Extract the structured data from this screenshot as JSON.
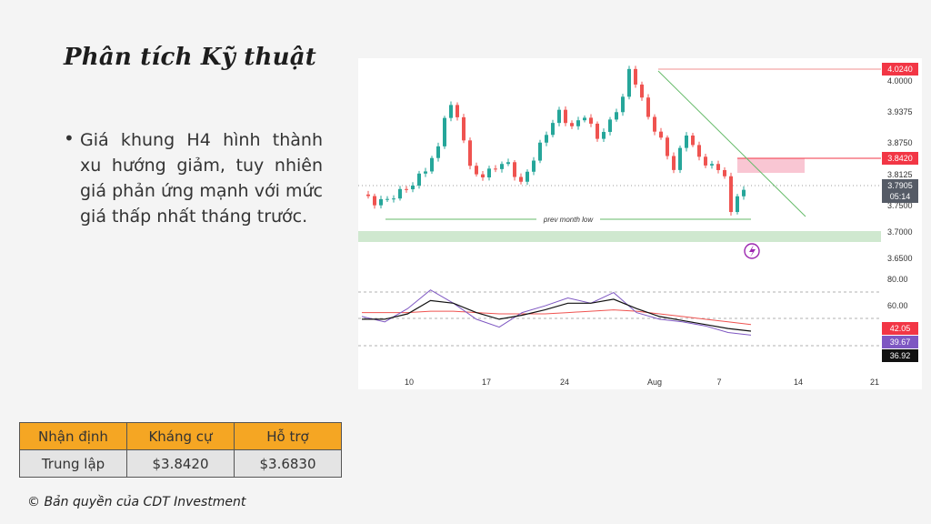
{
  "slide": {
    "title": "Phân tích Kỹ thuật"
  },
  "bullet": {
    "text": "Giá khung H4 hình thành xu hướng giảm, tuy nhiên giá phản ứng mạnh với mức giá thấp nhất tháng trước."
  },
  "chart": {
    "annotation": "prev month low",
    "price_axis": [
      "4.0000",
      "3.9375",
      "3.8750",
      "3.8125",
      "3.7500",
      "3.7000",
      "3.6500"
    ],
    "price_badges": {
      "high": "4.0240",
      "resistance": "3.8420",
      "current": "3.7905",
      "countdown": "05:14"
    },
    "rsi_axis": [
      "80.00",
      "60.00"
    ],
    "rsi_badges": {
      "a": "42.05",
      "b": "39.67",
      "c": "36.92"
    },
    "x_axis": [
      "10",
      "17",
      "24",
      "Aug",
      "7",
      "14",
      "21"
    ],
    "colors": {
      "up": "#26a69a",
      "down": "#ef5350",
      "resistance": "#f23645",
      "support_zone": "#cfe8cf",
      "trendline": "#66bb6a"
    }
  },
  "chart_data": {
    "type": "candlestick",
    "timeframe": "H4",
    "x_ticks": [
      "10",
      "17",
      "24",
      "Aug",
      "7",
      "14",
      "21"
    ],
    "ylim": [
      3.64,
      4.04
    ],
    "close_path": [
      [
        0,
        3.78
      ],
      [
        2,
        3.765
      ],
      [
        4,
        3.77
      ],
      [
        6,
        3.785
      ],
      [
        8,
        3.8
      ],
      [
        10,
        3.83
      ],
      [
        12,
        3.87
      ],
      [
        13,
        3.935
      ],
      [
        14,
        3.95
      ],
      [
        15,
        3.93
      ],
      [
        16,
        3.89
      ],
      [
        17,
        3.83
      ],
      [
        19,
        3.815
      ],
      [
        21,
        3.835
      ],
      [
        23,
        3.84
      ],
      [
        25,
        3.8
      ],
      [
        27,
        3.85
      ],
      [
        29,
        3.9
      ],
      [
        31,
        3.94
      ],
      [
        33,
        3.91
      ],
      [
        35,
        3.935
      ],
      [
        37,
        3.89
      ],
      [
        39,
        3.92
      ],
      [
        41,
        3.97
      ],
      [
        42,
        4.02
      ],
      [
        43,
        4.0
      ],
      [
        45,
        3.93
      ],
      [
        47,
        3.885
      ],
      [
        49,
        3.83
      ],
      [
        51,
        3.9
      ],
      [
        53,
        3.85
      ],
      [
        55,
        3.835
      ],
      [
        57,
        3.82
      ],
      [
        58,
        3.74
      ],
      [
        59,
        3.78
      ],
      [
        60,
        3.7905
      ]
    ],
    "levels": {
      "high": 4.024,
      "resistance": 3.842,
      "current": 3.7905,
      "prev_month_low": 3.7425,
      "resistance_zone": [
        3.828,
        3.848
      ],
      "support_zone": [
        3.692,
        3.702
      ]
    },
    "trendline": [
      [
        42,
        4.02
      ],
      [
        66,
        3.75
      ]
    ],
    "rsi": {
      "ylim": [
        25,
        95
      ],
      "levels": [
        80,
        60,
        42.05,
        39.67,
        36.92
      ],
      "rsi_line": [
        52,
        48,
        58,
        72,
        62,
        50,
        44,
        55,
        60,
        66,
        62,
        70,
        55,
        50,
        48,
        45,
        40,
        38
      ],
      "signal_line": [
        50,
        50,
        54,
        64,
        62,
        55,
        50,
        53,
        57,
        62,
        62,
        65,
        58,
        52,
        49,
        46,
        43,
        41
      ],
      "ma_line": [
        55,
        55,
        55,
        56,
        56,
        55,
        54,
        54,
        54,
        55,
        56,
        57,
        56,
        54,
        52,
        50,
        48,
        46
      ]
    }
  },
  "table": {
    "headers": [
      "Nhận định",
      "Kháng cự",
      "Hỗ trợ"
    ],
    "row": [
      "Trung lập",
      "$3.8420",
      "$3.6830"
    ]
  },
  "footer": {
    "copyright": "© Bản quyền của CDT Investment"
  }
}
